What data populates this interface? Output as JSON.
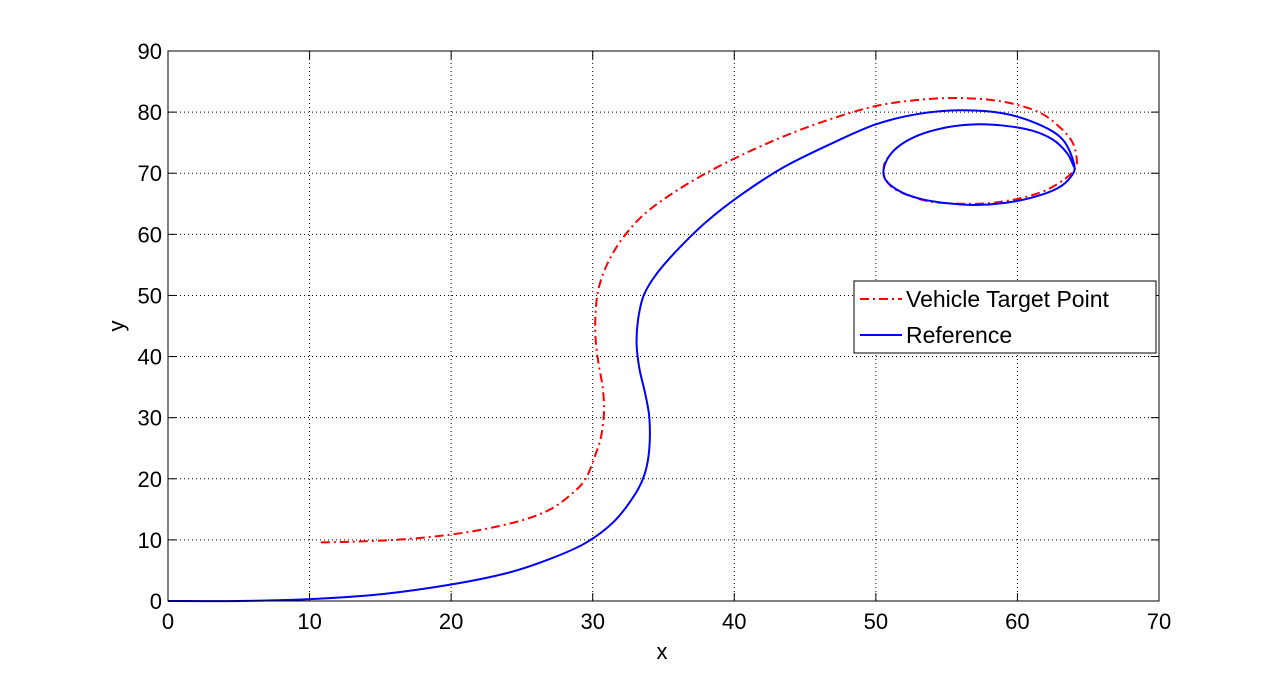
{
  "chart_data": {
    "type": "line",
    "title": "",
    "xlabel": "x",
    "ylabel": "y",
    "xlim": [
      0,
      70
    ],
    "ylim": [
      0,
      90
    ],
    "xticks": [
      0,
      10,
      20,
      30,
      40,
      50,
      60,
      70
    ],
    "yticks": [
      0,
      10,
      20,
      30,
      40,
      50,
      60,
      70,
      80,
      90
    ],
    "grid": true,
    "legend_position": "center-right",
    "series": [
      {
        "name": "Vehicle Target Point",
        "color": "#ff0000",
        "style": "dash-dot",
        "x": [
          10.8,
          13,
          16,
          19,
          22,
          25,
          27,
          28.5,
          29.5,
          30.2,
          30.6,
          30.8,
          30.7,
          30.4,
          30.2,
          30.2,
          30.4,
          31,
          32,
          33.5,
          35.5,
          38,
          41,
          44,
          47,
          50,
          53,
          56,
          59,
          61.5,
          63,
          63.9,
          64.2,
          64,
          63.2,
          61.8,
          60,
          58,
          56,
          54,
          52.5,
          51.2,
          50.6,
          50.6,
          51
        ],
        "y": [
          9.6,
          9.7,
          10,
          10.6,
          11.6,
          13.2,
          15,
          17.5,
          20,
          24,
          27,
          31,
          35,
          39,
          43,
          47,
          51,
          55,
          59,
          63,
          66.5,
          70,
          73.5,
          76.5,
          79,
          81,
          82,
          82.3,
          81.7,
          80,
          77.5,
          75,
          72,
          70.5,
          68.8,
          67,
          65.8,
          65.1,
          65,
          65.3,
          66.2,
          67.6,
          69.5,
          71.5,
          73
        ]
      },
      {
        "name": "Reference",
        "color": "#0000ff",
        "style": "solid",
        "x": [
          0,
          5,
          10,
          15,
          20,
          24,
          27,
          29.5,
          31.5,
          33,
          33.7,
          34,
          34,
          33.7,
          33.3,
          33.1,
          33.2,
          33.6,
          34.5,
          36,
          38,
          40.5,
          43.5,
          47,
          50,
          53,
          56,
          59,
          61.5,
          63.2,
          64,
          63.8,
          62.8,
          61,
          59,
          57,
          55,
          53,
          51.5,
          50.6,
          50.7,
          51.5,
          53,
          55,
          57,
          59,
          61,
          62.5,
          63.5,
          64
        ],
        "y": [
          0,
          0,
          0.3,
          1.1,
          2.7,
          4.6,
          6.9,
          9.5,
          13,
          17.5,
          21,
          25,
          30,
          34,
          38,
          42,
          46,
          50,
          53.5,
          57.5,
          62,
          66.5,
          71,
          75,
          78,
          79.7,
          80.3,
          79.8,
          78,
          75.5,
          71.5,
          69.5,
          67.5,
          66,
          65.1,
          64.8,
          65.1,
          65.9,
          67.3,
          69.3,
          71.8,
          74.2,
          76.2,
          77.5,
          78,
          77.8,
          77,
          75.5,
          73.3,
          71
        ]
      }
    ]
  }
}
